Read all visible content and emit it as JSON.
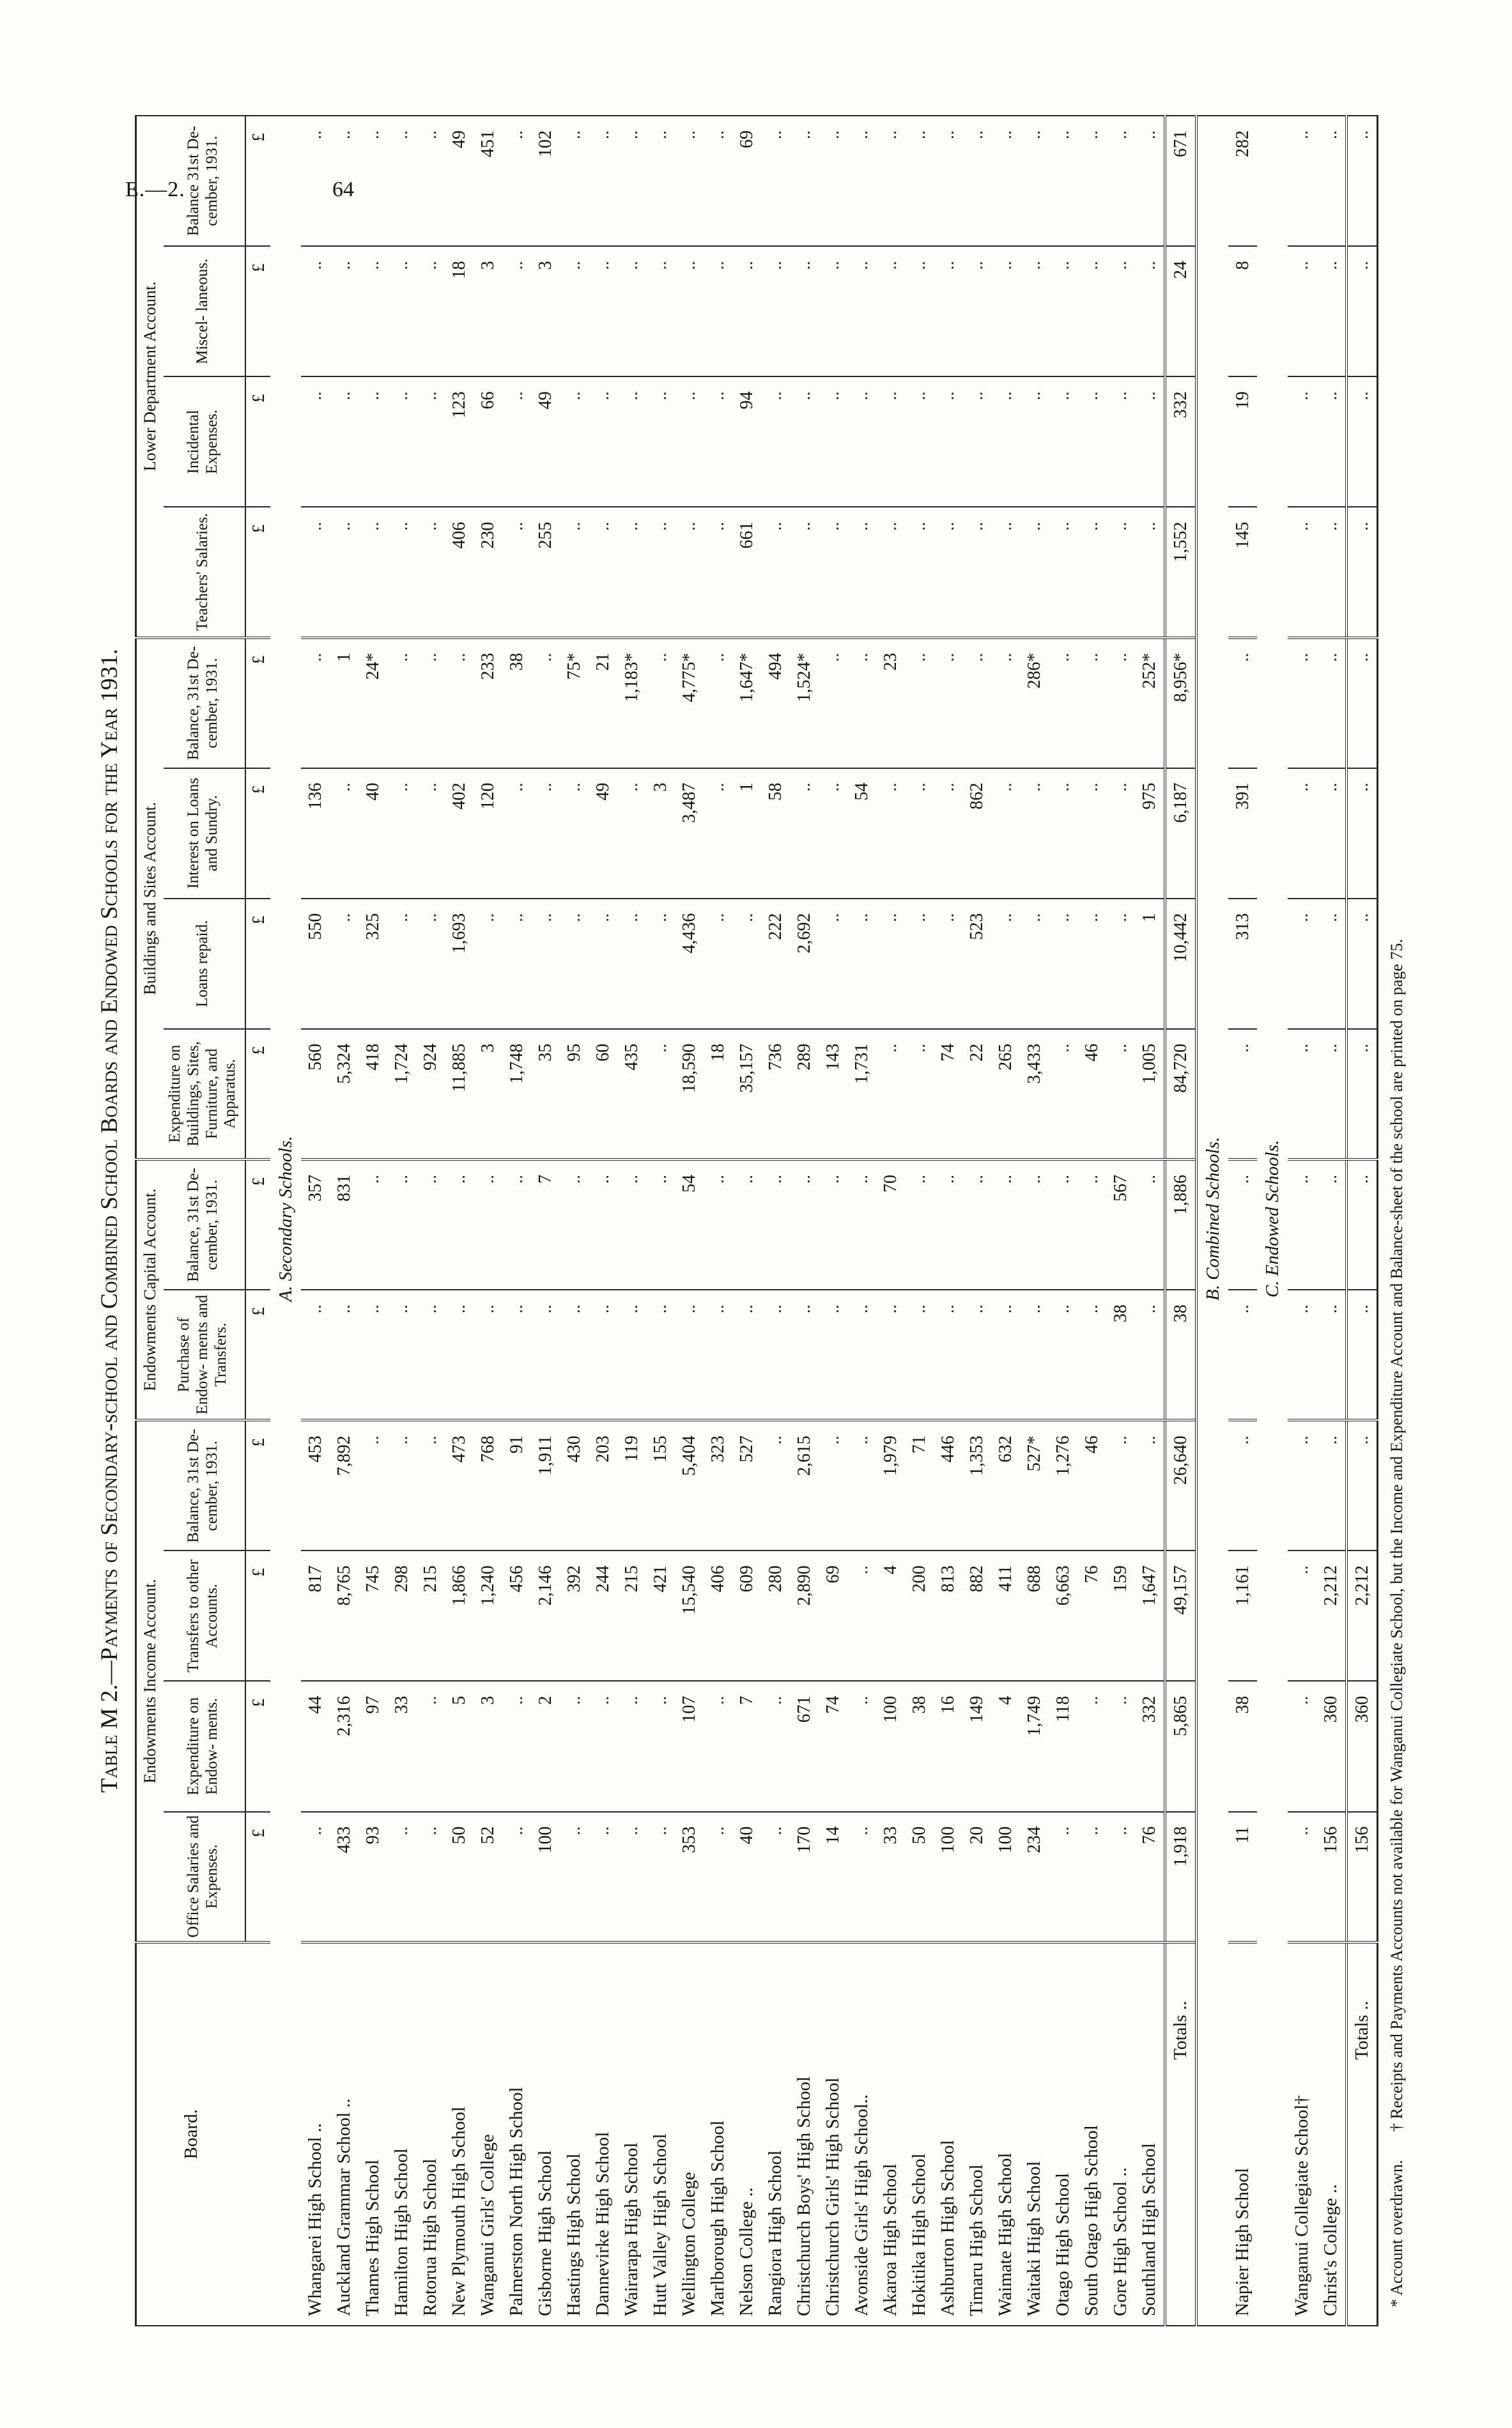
{
  "page_header": {
    "doc_ref": "E.—2.",
    "page_number": "64"
  },
  "title": "Table M 2.—Payments of Secondary-school and Combined School Boards and Endowed Schools for the Year 1931.",
  "footnotes": {
    "asterisk": "* Account overdrawn.",
    "dagger": "† Receipts and Payments Accounts not available for Wanganui Collegiate School, but the Income and Expenditure Account and Balance-sheet of the school are printed on page 75."
  },
  "table": {
    "board_header": "Board.",
    "currency_symbol": "£",
    "blank_marker": "..",
    "groups": [
      {
        "label": "Endowments Income Account.",
        "span": 4
      },
      {
        "label": "Endowments Capital Account.",
        "span": 2
      },
      {
        "label": "Buildings and Sites Account.",
        "span": 4
      },
      {
        "label": "Lower Department Account.",
        "span": 4
      }
    ],
    "columns": [
      "Office Salaries and Expenses.",
      "Expenditure on Endow- ments.",
      "Transfers to other Accounts.",
      "Balance, 31st De- cember, 1931.",
      "Purchase of Endow- ments and Transfers.",
      "Balance, 31st De- cember, 1931.",
      "Expenditure on Buildings, Sites, Furniture, and Apparatus.",
      "Loans repaid.",
      "Interest on Loans and Sundry.",
      "Balance, 31st De- cember, 1931.",
      "Teachers' Salaries.",
      "Incidental Expenses.",
      "Miscel- laneous.",
      "Balance 31st De- cember, 1931."
    ],
    "rows": [
      {
        "type": "section",
        "label": "A. Secondary Schools."
      },
      {
        "type": "school",
        "label": "Whangarei High School ..",
        "values": [
          "",
          "44",
          "817",
          "453",
          "",
          "357",
          "560",
          "550",
          "136",
          "",
          "",
          "",
          "",
          ""
        ]
      },
      {
        "type": "school",
        "label": "Auckland Grammar School ..",
        "values": [
          "433",
          "2,316",
          "8,765",
          "7,892",
          "",
          "831",
          "5,324",
          "",
          "",
          "1",
          "",
          "",
          "",
          ""
        ]
      },
      {
        "type": "school",
        "label": "Thames High School",
        "values": [
          "93",
          "97",
          "745",
          "",
          "",
          "",
          "418",
          "325",
          "40",
          "24*",
          "",
          "",
          "",
          ""
        ]
      },
      {
        "type": "school",
        "label": "Hamilton High School",
        "values": [
          "",
          "33",
          "298",
          "",
          "",
          "",
          "1,724",
          "",
          "",
          "",
          "",
          "",
          "",
          ""
        ]
      },
      {
        "type": "school",
        "label": "Rotorua High School",
        "values": [
          "",
          "",
          "215",
          "",
          "",
          "",
          "924",
          "",
          "",
          "",
          "",
          "",
          "",
          ""
        ]
      },
      {
        "type": "school",
        "label": "New Plymouth High School",
        "values": [
          "50",
          "5",
          "1,866",
          "473",
          "",
          "",
          "11,885",
          "1,693",
          "402",
          "",
          "406",
          "123",
          "18",
          "49"
        ]
      },
      {
        "type": "school",
        "label": "Wanganui Girls' College",
        "values": [
          "52",
          "3",
          "1,240",
          "768",
          "",
          "",
          "3",
          "",
          "120",
          "233",
          "230",
          "66",
          "3",
          "451"
        ]
      },
      {
        "type": "school",
        "label": "Palmerston North High School",
        "values": [
          "",
          "",
          "456",
          "91",
          "",
          "",
          "1,748",
          "",
          "",
          "38",
          "",
          "",
          "",
          ""
        ]
      },
      {
        "type": "school",
        "label": "Gisborne High School",
        "values": [
          "100",
          "2",
          "2,146",
          "1,911",
          "",
          "7",
          "35",
          "",
          "",
          "",
          "255",
          "49",
          "3",
          "102"
        ]
      },
      {
        "type": "school",
        "label": "Hastings High School",
        "values": [
          "",
          "",
          "392",
          "430",
          "",
          "",
          "95",
          "",
          "",
          "75*",
          "",
          "",
          "",
          ""
        ]
      },
      {
        "type": "school",
        "label": "Dannevirke High School",
        "values": [
          "",
          "",
          "244",
          "203",
          "",
          "",
          "60",
          "",
          "49",
          "21",
          "",
          "",
          "",
          ""
        ]
      },
      {
        "type": "school",
        "label": "Wairarapa High School",
        "values": [
          "",
          "",
          "215",
          "119",
          "",
          "",
          "435",
          "",
          "",
          "1,183*",
          "",
          "",
          "",
          ""
        ]
      },
      {
        "type": "school",
        "label": "Hutt Valley High School",
        "values": [
          "",
          "",
          "421",
          "155",
          "",
          "",
          "",
          "",
          "3",
          "",
          "",
          "",
          "",
          ""
        ]
      },
      {
        "type": "school",
        "label": "Wellington College",
        "values": [
          "353",
          "107",
          "15,540",
          "5,404",
          "",
          "54",
          "18,590",
          "4,436",
          "3,487",
          "4,775*",
          "",
          "",
          "",
          ""
        ]
      },
      {
        "type": "school",
        "label": "Marlborough High School",
        "values": [
          "",
          "",
          "406",
          "323",
          "",
          "",
          "18",
          "",
          "",
          "",
          "",
          "",
          "",
          ""
        ]
      },
      {
        "type": "school",
        "label": "Nelson College ..",
        "values": [
          "40",
          "7",
          "609",
          "527",
          "",
          "",
          "35,157",
          "",
          "1",
          "1,647*",
          "661",
          "94",
          "",
          "69"
        ]
      },
      {
        "type": "school",
        "label": "Rangiora High School",
        "values": [
          "",
          "",
          "280",
          "",
          "",
          "",
          "736",
          "222",
          "58",
          "494",
          "",
          "",
          "",
          ""
        ]
      },
      {
        "type": "school",
        "label": "Christchurch Boys' High School",
        "values": [
          "170",
          "671",
          "2,890",
          "2,615",
          "",
          "",
          "289",
          "2,692",
          "",
          "1,524*",
          "",
          "",
          "",
          ""
        ]
      },
      {
        "type": "school",
        "label": "Christchurch Girls' High School",
        "values": [
          "14",
          "74",
          "69",
          "",
          "",
          "",
          "143",
          "",
          "",
          "",
          "",
          "",
          "",
          ""
        ]
      },
      {
        "type": "school",
        "label": "Avonside Girls' High School..",
        "values": [
          "",
          "",
          "",
          "",
          "",
          "",
          "1,731",
          "",
          "54",
          "",
          "",
          "",
          "",
          ""
        ]
      },
      {
        "type": "school",
        "label": "Akaroa High School",
        "values": [
          "33",
          "100",
          "4",
          "1,979",
          "",
          "70",
          "",
          "",
          "",
          "23",
          "",
          "",
          "",
          ""
        ]
      },
      {
        "type": "school",
        "label": "Hokitika High School",
        "values": [
          "50",
          "38",
          "200",
          "71",
          "",
          "",
          "",
          "",
          "",
          "",
          "",
          "",
          "",
          ""
        ]
      },
      {
        "type": "school",
        "label": "Ashburton High School",
        "values": [
          "100",
          "16",
          "813",
          "446",
          "",
          "",
          "74",
          "",
          "",
          "",
          "",
          "",
          "",
          ""
        ]
      },
      {
        "type": "school",
        "label": "Timaru High School",
        "values": [
          "20",
          "149",
          "882",
          "1,353",
          "",
          "",
          "22",
          "523",
          "862",
          "",
          "",
          "",
          "",
          ""
        ]
      },
      {
        "type": "school",
        "label": "Waimate High School",
        "values": [
          "100",
          "4",
          "411",
          "632",
          "",
          "",
          "265",
          "",
          "",
          "",
          "",
          "",
          "",
          ""
        ]
      },
      {
        "type": "school",
        "label": "Waitaki High School",
        "values": [
          "234",
          "1,749",
          "688",
          "527*",
          "",
          "",
          "3,433",
          "",
          "",
          "286*",
          "",
          "",
          "",
          ""
        ]
      },
      {
        "type": "school",
        "label": "Otago High School",
        "values": [
          "",
          "118",
          "6,663",
          "1,276",
          "",
          "",
          "",
          "",
          "",
          "",
          "",
          "",
          "",
          ""
        ]
      },
      {
        "type": "school",
        "label": "South Otago High School",
        "values": [
          "",
          "",
          "76",
          "46",
          "",
          "",
          "46",
          "",
          "",
          "",
          "",
          "",
          "",
          ""
        ]
      },
      {
        "type": "school",
        "label": "Gore High School ..",
        "values": [
          "",
          "",
          "159",
          "",
          "38",
          "567",
          "",
          "",
          "",
          "",
          "",
          "",
          "",
          ""
        ]
      },
      {
        "type": "school",
        "label": "Southland High School",
        "values": [
          "76",
          "332",
          "1,647",
          "",
          "",
          "",
          "1,005",
          "1",
          "975",
          "252*",
          "",
          "",
          "",
          ""
        ]
      },
      {
        "type": "totals",
        "label": "Totals ..",
        "values": [
          "1,918",
          "5,865",
          "49,157",
          "26,640",
          "38",
          "1,886",
          "84,720",
          "10,442",
          "6,187",
          "8,956*",
          "1,552",
          "332",
          "24",
          "671"
        ]
      },
      {
        "type": "section",
        "label": "B. Combined Schools."
      },
      {
        "type": "school",
        "label": "Napier High School",
        "values": [
          "11",
          "38",
          "1,161",
          "",
          "",
          "",
          "",
          "313",
          "391",
          "",
          "145",
          "19",
          "8",
          "282"
        ]
      },
      {
        "type": "section",
        "label": "C. Endowed Schools."
      },
      {
        "type": "school",
        "label": "Wanganui Collegiate School†",
        "values": [
          "",
          "",
          "",
          "",
          "",
          "",
          "",
          "",
          "",
          "",
          "",
          "",
          "",
          ""
        ]
      },
      {
        "type": "school",
        "label": "Christ's College ..",
        "values": [
          "156",
          "360",
          "2,212",
          "",
          "",
          "",
          "",
          "",
          "",
          "",
          "",
          "",
          "",
          ""
        ]
      },
      {
        "type": "totals",
        "label": "Totals ..",
        "values": [
          "156",
          "360",
          "2,212",
          "",
          "",
          "",
          "",
          "",
          "",
          "",
          "",
          "",
          "",
          ""
        ]
      }
    ]
  }
}
